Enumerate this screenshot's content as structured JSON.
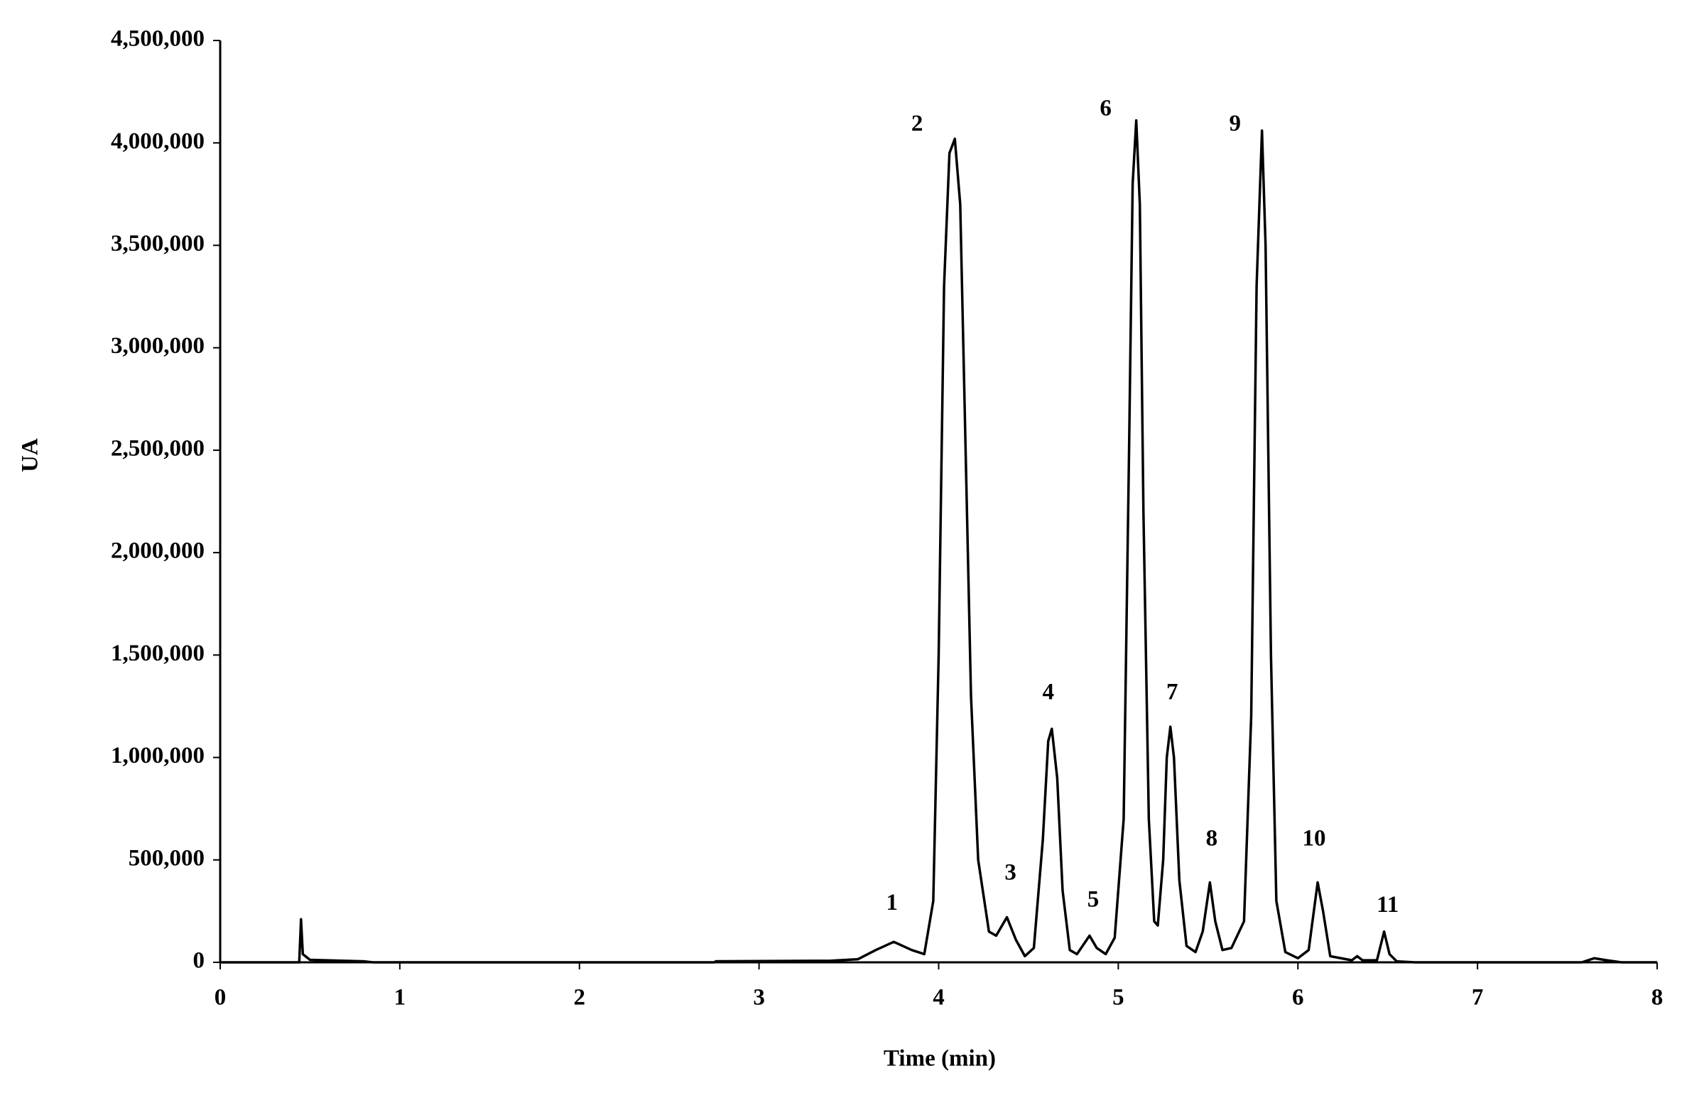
{
  "chart_data": {
    "type": "line",
    "x_label": "Time (min)",
    "y_label": "UA",
    "xlim": [
      0,
      8
    ],
    "xticks": [
      0,
      1,
      2,
      3,
      4,
      5,
      6,
      7,
      8
    ],
    "ylim": [
      0,
      4500000
    ],
    "yticks": [
      0,
      {
        "value": 500000,
        "label": "500,000"
      },
      {
        "value": 1000000,
        "label": "1,000,000"
      },
      {
        "value": 1500000,
        "label": "1,500,000"
      },
      {
        "value": 2000000,
        "label": "2,000,000"
      },
      {
        "value": 2500000,
        "label": "2,500,000"
      },
      {
        "value": 3000000,
        "label": "3,000,000"
      },
      {
        "value": 3500000,
        "label": "3,500,000"
      },
      {
        "value": 4000000,
        "label": "4,000,000"
      },
      {
        "value": 4500000,
        "label": "4,500,000"
      }
    ],
    "grid": false,
    "color": "#000000",
    "x": [
      0,
      0.44,
      0.45,
      0.46,
      0.5,
      0.8,
      0.85,
      2.75,
      2.76,
      3.4,
      3.55,
      3.65,
      3.75,
      3.85,
      3.92,
      3.97,
      4.0,
      4.03,
      4.06,
      4.09,
      4.12,
      4.15,
      4.18,
      4.22,
      4.28,
      4.32,
      4.38,
      4.43,
      4.48,
      4.53,
      4.58,
      4.61,
      4.63,
      4.66,
      4.69,
      4.73,
      4.77,
      4.84,
      4.88,
      4.93,
      4.98,
      5.03,
      5.06,
      5.08,
      5.1,
      5.12,
      5.14,
      5.17,
      5.2,
      5.22,
      5.25,
      5.27,
      5.29,
      5.31,
      5.34,
      5.38,
      5.43,
      5.47,
      5.51,
      5.54,
      5.58,
      5.63,
      5.7,
      5.74,
      5.77,
      5.8,
      5.82,
      5.85,
      5.88,
      5.93,
      6.0,
      6.06,
      6.11,
      6.14,
      6.18,
      6.3,
      6.33,
      6.36,
      6.44,
      6.48,
      6.51,
      6.55,
      6.65,
      7.58,
      7.65,
      7.72,
      7.8,
      8
    ],
    "values": [
      0,
      0,
      210000,
      40000,
      12000,
      5000,
      0,
      0,
      5000,
      8000,
      15000,
      60000,
      100000,
      60000,
      40000,
      300000,
      1500000,
      3300000,
      3950000,
      4020000,
      3700000,
      2500000,
      1300000,
      500000,
      150000,
      130000,
      220000,
      110000,
      30000,
      70000,
      600000,
      1080000,
      1140000,
      900000,
      350000,
      60000,
      40000,
      130000,
      70000,
      40000,
      120000,
      700000,
      2500000,
      3800000,
      4110000,
      3700000,
      2200000,
      700000,
      200000,
      180000,
      500000,
      1000000,
      1150000,
      1000000,
      400000,
      80000,
      50000,
      150000,
      390000,
      200000,
      60000,
      70000,
      200000,
      1200000,
      3300000,
      4060000,
      3500000,
      1500000,
      300000,
      50000,
      20000,
      60000,
      390000,
      250000,
      30000,
      10000,
      30000,
      10000,
      10000,
      150000,
      40000,
      5000,
      0,
      0,
      20000,
      10000,
      0,
      0
    ],
    "annotations": [
      {
        "text": "1",
        "x": 3.74,
        "y": 283000
      },
      {
        "text": "2",
        "x": 3.88,
        "y": 4086000
      },
      {
        "text": "3",
        "x": 4.4,
        "y": 430000
      },
      {
        "text": "4",
        "x": 4.61,
        "y": 1310000
      },
      {
        "text": "5",
        "x": 4.86,
        "y": 299000
      },
      {
        "text": "6",
        "x": 4.93,
        "y": 4160000
      },
      {
        "text": "7",
        "x": 5.3,
        "y": 1310000
      },
      {
        "text": "8",
        "x": 5.52,
        "y": 597000
      },
      {
        "text": "9",
        "x": 5.65,
        "y": 4086000
      },
      {
        "text": "10",
        "x": 6.09,
        "y": 597000
      },
      {
        "text": "11",
        "x": 6.5,
        "y": 272000
      }
    ]
  }
}
